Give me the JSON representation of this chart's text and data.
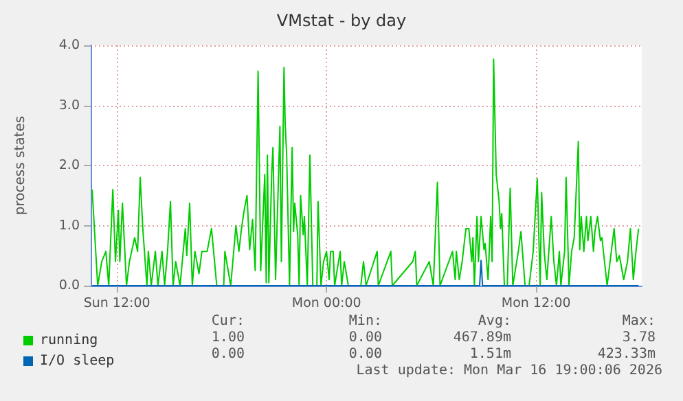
{
  "chart_data": {
    "type": "line",
    "title": "VMstat - by day",
    "ylabel": "process states",
    "xlim": [
      "2026-03-15T10:30",
      "2026-03-16T18:03"
    ],
    "xticks": [
      {
        "value": "2026-03-15T12:00",
        "label": "Sun 12:00"
      },
      {
        "value": "2026-03-16T00:00",
        "label": "Mon 00:00"
      },
      {
        "value": "2026-03-16T12:00",
        "label": "Mon 12:00"
      }
    ],
    "ylim": [
      0,
      4
    ],
    "yticks": [
      {
        "value": 0,
        "label": "0.0"
      },
      {
        "value": 1,
        "label": "1.0"
      },
      {
        "value": 2,
        "label": "2.0"
      },
      {
        "value": 3,
        "label": "3.0"
      },
      {
        "value": 4,
        "label": "4.0"
      }
    ],
    "grid": true,
    "legend": "bottom left",
    "series": [
      {
        "name": "running",
        "color": "#00cc00",
        "x": [
          "2026-03-15T10:35",
          "2026-03-15T10:54",
          "2026-03-15T11:08",
          "2026-03-15T11:22",
          "2026-03-15T11:32",
          "2026-03-15T11:46",
          "2026-03-15T11:55",
          "2026-03-15T12:05",
          "2026-03-15T12:10",
          "2026-03-15T12:19",
          "2026-03-15T12:33",
          "2026-03-15T12:43",
          "2026-03-15T13:01",
          "2026-03-15T13:11",
          "2026-03-15T13:20",
          "2026-03-15T13:29",
          "2026-03-15T13:43",
          "2026-03-15T13:48",
          "2026-03-15T13:58",
          "2026-03-15T14:12",
          "2026-03-15T14:21",
          "2026-03-15T14:35",
          "2026-03-15T14:44",
          "2026-03-15T14:54",
          "2026-03-15T15:04",
          "2026-03-15T15:13",
          "2026-03-15T15:22",
          "2026-03-15T15:37",
          "2026-03-15T15:55",
          "2026-03-15T16:00",
          "2026-03-15T16:10",
          "2026-03-15T16:19",
          "2026-03-15T16:28",
          "2026-03-15T16:42",
          "2026-03-15T16:52",
          "2026-03-15T17:01",
          "2026-03-15T17:10",
          "2026-03-15T17:25",
          "2026-03-15T17:43",
          "2026-03-15T18:07",
          "2026-03-15T18:11",
          "2026-03-15T18:31",
          "2026-03-15T18:49",
          "2026-03-15T18:59",
          "2026-03-15T19:08",
          "2026-03-15T19:17",
          "2026-03-15T19:27",
          "2026-03-15T19:36",
          "2026-03-15T19:46",
          "2026-03-15T19:55",
          "2026-03-15T20:05",
          "2026-03-15T20:14",
          "2026-03-15T20:28",
          "2026-03-15T20:33",
          "2026-03-15T20:37",
          "2026-03-15T20:42",
          "2026-03-15T20:52",
          "2026-03-15T20:56",
          "2026-03-15T21:05",
          "2026-03-15T21:20",
          "2026-03-15T21:25",
          "2026-03-15T21:34",
          "2026-03-15T21:38",
          "2026-03-15T21:43",
          "2026-03-15T21:53",
          "2026-03-15T22:02",
          "2026-03-15T22:07",
          "2026-03-15T22:11",
          "2026-03-15T22:21",
          "2026-03-15T22:26",
          "2026-03-15T22:31",
          "2026-03-15T22:40",
          "2026-03-15T22:44",
          "2026-03-15T22:54",
          "2026-03-15T23:03",
          "2026-03-15T23:13",
          "2026-03-15T23:27",
          "2026-03-15T23:31",
          "2026-03-15T23:41",
          "2026-03-15T23:50",
          "2026-03-16T00:00",
          "2026-03-16T00:09",
          "2026-03-16T00:14",
          "2026-03-16T00:23",
          "2026-03-16T00:28",
          "2026-03-16T00:47",
          "2026-03-16T00:52",
          "2026-03-16T01:01",
          "2026-03-16T01:15",
          "2026-03-16T01:58",
          "2026-03-16T02:07",
          "2026-03-16T02:16",
          "2026-03-16T02:54",
          "2026-03-16T02:58",
          "2026-03-16T03:41",
          "2026-03-16T03:46",
          "2026-03-16T04:56",
          "2026-03-16T05:05",
          "2026-03-16T05:10",
          "2026-03-16T05:53",
          "2026-03-16T06:07",
          "2026-03-16T06:21",
          "2026-03-16T06:30",
          "2026-03-16T07:13",
          "2026-03-16T07:22",
          "2026-03-16T07:26",
          "2026-03-16T07:36",
          "2026-03-16T07:46",
          "2026-03-16T07:59",
          "2026-03-16T08:09",
          "2026-03-16T08:19",
          "2026-03-16T08:23",
          "2026-03-16T08:28",
          "2026-03-16T08:37",
          "2026-03-16T08:42",
          "2026-03-16T08:51",
          "2026-03-16T09:01",
          "2026-03-16T09:05",
          "2026-03-16T09:15",
          "2026-03-16T09:24",
          "2026-03-16T09:29",
          "2026-03-16T09:34",
          "2026-03-16T09:43",
          "2026-03-16T09:53",
          "2026-03-16T09:58",
          "2026-03-16T10:02",
          "2026-03-16T10:11",
          "2026-03-16T10:21",
          "2026-03-16T10:31",
          "2026-03-16T10:40",
          "2026-03-16T10:59",
          "2026-03-16T11:08",
          "2026-03-16T11:22",
          "2026-03-16T11:36",
          "2026-03-16T11:50",
          "2026-03-16T12:04",
          "2026-03-16T12:14",
          "2026-03-16T12:19",
          "2026-03-16T12:28",
          "2026-03-16T12:37",
          "2026-03-16T12:52",
          "2026-03-16T13:01",
          "2026-03-16T13:10",
          "2026-03-16T13:20",
          "2026-03-16T13:25",
          "2026-03-16T13:38",
          "2026-03-16T13:43",
          "2026-03-16T13:53",
          "2026-03-16T14:02",
          "2026-03-16T14:11",
          "2026-03-16T14:25",
          "2026-03-16T14:30",
          "2026-03-16T14:35",
          "2026-03-16T14:44",
          "2026-03-16T14:53",
          "2026-03-16T14:58",
          "2026-03-16T15:08",
          "2026-03-16T15:17",
          "2026-03-16T15:22",
          "2026-03-16T15:31",
          "2026-03-16T15:41",
          "2026-03-16T15:46",
          "2026-03-16T15:55",
          "2026-03-16T16:04",
          "2026-03-16T16:28",
          "2026-03-16T16:37",
          "2026-03-16T16:46",
          "2026-03-16T17:01",
          "2026-03-16T17:14",
          "2026-03-16T17:24",
          "2026-03-16T17:34",
          "2026-03-16T17:43",
          "2026-03-16T17:52"
        ],
        "values": [
          1.6,
          0,
          0.4,
          0.57,
          0,
          1.6,
          0.4,
          1.25,
          0.4,
          1.37,
          0,
          0.4,
          0.8,
          0.57,
          1.8,
          0.95,
          0,
          0.57,
          0,
          0.57,
          0,
          0.57,
          0,
          0.57,
          1.4,
          0,
          0.4,
          0,
          0.95,
          0.5,
          1.37,
          0,
          0.57,
          0.2,
          0.57,
          0.57,
          0.57,
          0.95,
          0,
          0,
          0.57,
          0,
          1.0,
          0.57,
          0.95,
          1.25,
          1.5,
          0.6,
          1.1,
          0.25,
          3.57,
          0.25,
          1.85,
          0.05,
          2.17,
          0.05,
          1.9,
          2.3,
          0.1,
          2.65,
          0.4,
          3.63,
          2.7,
          2.2,
          0,
          2.3,
          0.9,
          1.37,
          0.85,
          0,
          1.5,
          0.85,
          1.15,
          0,
          2.17,
          0,
          0,
          1.4,
          0,
          0.4,
          0.57,
          0.1,
          0.57,
          0.57,
          0,
          0.57,
          0,
          0.4,
          0,
          0,
          0.4,
          0,
          0.57,
          0,
          0.57,
          0,
          0.4,
          0.57,
          0,
          0.4,
          0,
          1.72,
          0,
          0.57,
          0.1,
          0.57,
          0.1,
          0.4,
          0.95,
          0.95,
          0.4,
          0.8,
          0,
          1.15,
          0.4,
          1.15,
          0.6,
          0.7,
          0.1,
          1.15,
          0.4,
          3.77,
          1.85,
          1.4,
          0.95,
          1.2,
          0,
          0,
          1.62,
          0,
          0.57,
          0.9,
          0,
          0,
          0.57,
          1.78,
          0,
          1.55,
          0.55,
          0.1,
          1.15,
          0.4,
          0,
          0.57,
          0,
          0.57,
          1.8,
          0,
          0.57,
          0.8,
          2.4,
          0.6,
          1.15,
          0.57,
          1.15,
          0.75,
          1.15,
          0.57,
          0.9,
          1.15,
          0.75,
          0.8,
          0.4,
          0,
          0.95,
          0.4,
          0.5,
          0.1,
          0.4,
          0.95,
          0.1,
          0.57,
          0.95
        ]
      },
      {
        "name": "I/O sleep",
        "color": "#0066b3",
        "x": [
          "2026-03-15T10:35",
          "2026-03-16T08:46",
          "2026-03-16T08:51",
          "2026-03-16T08:56",
          "2026-03-16T17:52"
        ],
        "values": [
          0,
          0,
          0.42,
          0,
          0
        ]
      }
    ],
    "annotations": [
      "Cur:",
      "Min:",
      "Avg:",
      "Max:",
      "1.00",
      "0.00",
      "467.89m",
      "3.78",
      "0.00",
      "0.00",
      "1.51m",
      "423.33m",
      "Last update: Mon Mar 16 19:00:06 2026"
    ]
  }
}
